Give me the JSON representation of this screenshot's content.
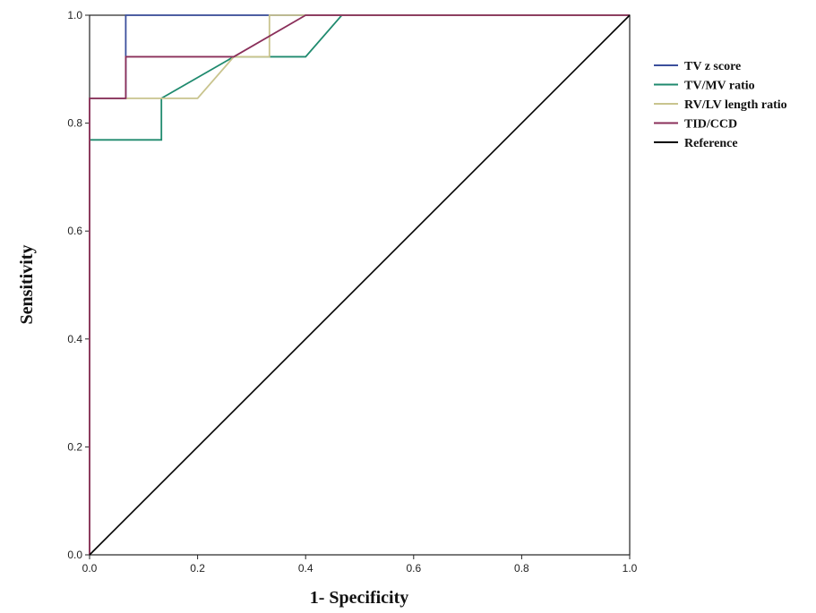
{
  "chart_data": {
    "type": "line",
    "title": "",
    "xlabel": "1- Specificity",
    "ylabel": "Sensitivity",
    "xlim": [
      0,
      1
    ],
    "ylim": [
      0,
      1
    ],
    "x_ticks": [
      "0.0",
      "0.2",
      "0.4",
      "0.6",
      "0.8",
      "1.0"
    ],
    "y_ticks": [
      "0.0",
      "0.2",
      "0.4",
      "0.6",
      "0.8",
      "1.0"
    ],
    "grid": false,
    "legend_position": "right",
    "series": [
      {
        "name": "TV z score",
        "color": "#3b4f9c",
        "x": [
          0,
          0,
          0.067,
          0.067,
          1.0
        ],
        "y": [
          0,
          0.846,
          0.846,
          1.0,
          1.0
        ]
      },
      {
        "name": "TV/MV ratio",
        "color": "#1f8a6e",
        "x": [
          0,
          0,
          0.133,
          0.133,
          0.267,
          0.4,
          0.467,
          1.0
        ],
        "y": [
          0,
          0.769,
          0.769,
          0.846,
          0.923,
          0.923,
          1.0,
          1.0
        ]
      },
      {
        "name": "RV/LV length ratio",
        "color": "#c9c48e",
        "x": [
          0,
          0,
          0.2,
          0.267,
          0.333,
          0.333,
          1.0
        ],
        "y": [
          0,
          0.846,
          0.846,
          0.923,
          0.923,
          1.0,
          1.0
        ]
      },
      {
        "name": "TID/CCD",
        "color": "#8a2f5a",
        "x": [
          0,
          0,
          0.067,
          0.067,
          0.267,
          0.4,
          1.0
        ],
        "y": [
          0,
          0.846,
          0.846,
          0.923,
          0.923,
          1.0,
          1.0
        ]
      },
      {
        "name": "Reference",
        "color": "#000000",
        "x": [
          0,
          1.0
        ],
        "y": [
          0,
          1.0
        ]
      }
    ]
  }
}
